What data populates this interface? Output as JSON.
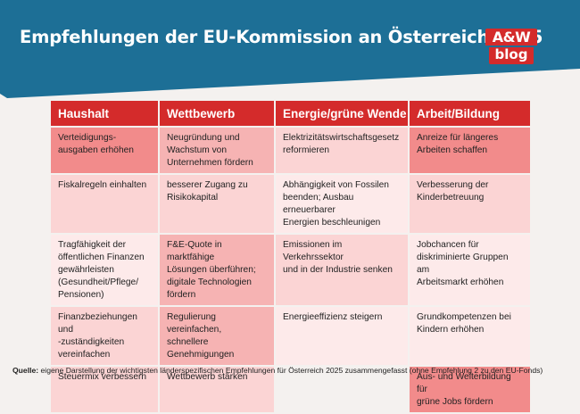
{
  "header": {
    "title": "Empfehlungen der EU-Kommission an Österreich 2025",
    "logo_top": "A&W",
    "logo_bottom": "blog"
  },
  "table": {
    "columns": [
      "Haushalt",
      "Wettbewerb",
      "Energie/grüne Wende",
      "Arbeit/Bildung"
    ],
    "rows": [
      [
        "Verteidigungs-\nausgaben erhöhen",
        "Neugründung und\nWachstum von\nUnternehmen fördern",
        "Elektrizitätswirtschaftsgesetz\nreformieren",
        "Anreize für längeres\nArbeiten schaffen"
      ],
      [
        "Fiskalregeln einhalten",
        "besserer Zugang zu\nRisikokapital",
        "Abhängigkeit von Fossilen\nbeenden; Ausbau erneuerbarer\nEnergien beschleunigen",
        "Verbesserung der\nKinderbetreuung"
      ],
      [
        "Tragfähigkeit der\nöffentlichen Finanzen\ngewährleisten\n(Gesundheit/Pflege/\nPensionen)",
        "F&E-Quote in marktfähige\nLösungen überführen;\ndigitale Technologien\nfördern",
        "Emissionen im Verkehrssektor\nund in der Industrie senken",
        "Jobchancen für\ndiskriminierte Gruppen am\nArbeitsmarkt erhöhen"
      ],
      [
        "Finanzbeziehungen und\n-zuständigkeiten\nvereinfachen",
        "Regulierung vereinfachen,\nschnellere\nGenehmigungen",
        "Energieeffizienz steigern",
        "Grundkompetenzen bei\nKindern erhöhen"
      ],
      [
        "Steuermix verbessern",
        "Wettbewerb stärken",
        "",
        "Aus- und Weiterbildung für\ngrüne Jobs fördern"
      ]
    ]
  },
  "colors": {
    "banner": "#1d6f96",
    "header_red": "#d42b2b",
    "cell_dark": "#f28b8b",
    "cell_mid": "#f6b3b3",
    "cell_light": "#fbd4d4",
    "cell_pale": "#fdeaea"
  },
  "source": {
    "label": "Quelle:",
    "text": " eigene Darstellung der wichtigsten länderspezifischen Empfehlungen für Österreich 2025 zusammengefasst (ohne Empfehlung 2 zu den EU-Fonds)"
  }
}
